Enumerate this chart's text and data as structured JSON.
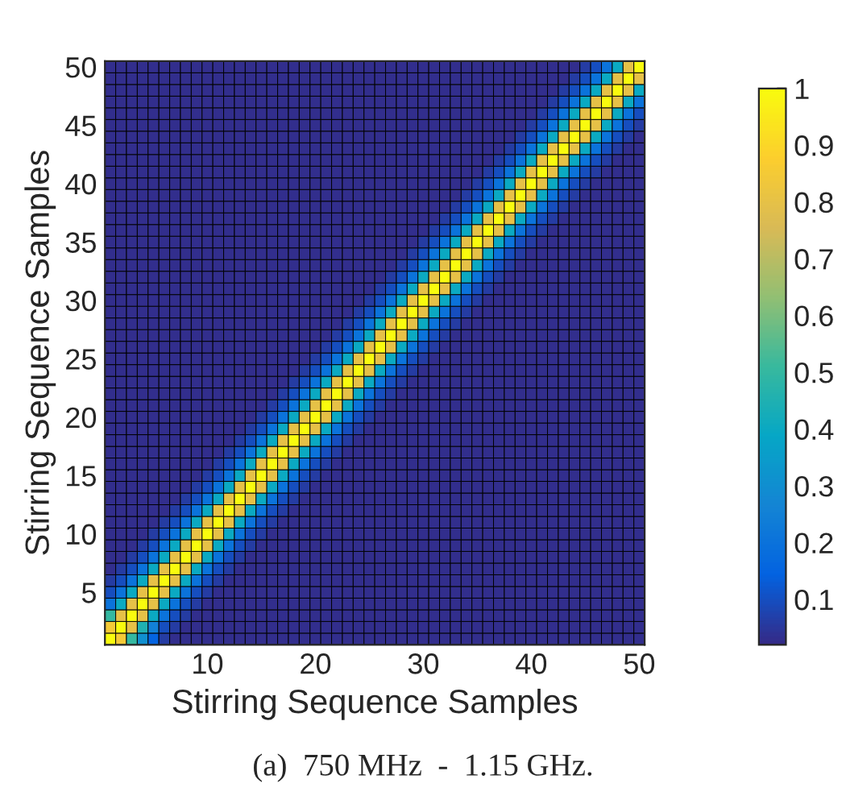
{
  "chart_data": {
    "type": "heatmap",
    "xlabel": "Stirring Sequence Samples",
    "ylabel": "Stirring Sequence Samples",
    "annotations": [
      "(a)  750 MHz  -  1.15 GHz."
    ],
    "categories": [
      null,
      null,
      null,
      null,
      null,
      null,
      null,
      null,
      null,
      "10",
      null,
      null,
      null,
      null,
      null,
      null,
      null,
      null,
      null,
      "20",
      null,
      null,
      null,
      null,
      null,
      null,
      null,
      null,
      null,
      "30",
      null,
      null,
      null,
      null,
      null,
      null,
      null,
      null,
      null,
      "40",
      null,
      null,
      null,
      null,
      null,
      null,
      null,
      null,
      null,
      "50"
    ],
    "y_categories": [
      "50",
      null,
      null,
      null,
      null,
      "45",
      null,
      null,
      null,
      null,
      "40",
      null,
      null,
      null,
      null,
      "35",
      null,
      null,
      null,
      null,
      "30",
      null,
      null,
      null,
      null,
      "25",
      null,
      null,
      null,
      null,
      "20",
      null,
      null,
      null,
      null,
      "15",
      null,
      null,
      null,
      null,
      "10",
      null,
      null,
      null,
      null,
      "5",
      null,
      null,
      null,
      null
    ],
    "clim": [
      0.02,
      1
    ],
    "cticks": [
      0.1,
      0.2,
      0.3,
      0.4,
      0.5,
      0.6,
      0.7,
      0.8,
      0.9,
      1
    ],
    "cells": [
      [
        0.03,
        0.03,
        0.03,
        0.03,
        0.03,
        0.03,
        0.03,
        0.03,
        0.03,
        0.03,
        0.03,
        0.03,
        0.03,
        0.03,
        0.03,
        0.03,
        0.03,
        0.03,
        0.03,
        0.03,
        0.03,
        0.03,
        0.03,
        0.03,
        0.03,
        0.03,
        0.03,
        0.03,
        0.03,
        0.03,
        0.03,
        0.03,
        0.03,
        0.03,
        0.03,
        0.03,
        0.03,
        0.03,
        0.03,
        0.03,
        0.03,
        0.03,
        0.03,
        0.03,
        0.06,
        0.1,
        0.2,
        0.4,
        0.8,
        1
      ],
      [
        0.03,
        0.03,
        0.03,
        0.03,
        0.03,
        0.03,
        0.03,
        0.03,
        0.03,
        0.03,
        0.03,
        0.03,
        0.03,
        0.03,
        0.03,
        0.03,
        0.03,
        0.03,
        0.03,
        0.03,
        0.03,
        0.03,
        0.03,
        0.03,
        0.03,
        0.03,
        0.03,
        0.03,
        0.03,
        0.03,
        0.03,
        0.03,
        0.03,
        0.03,
        0.03,
        0.03,
        0.03,
        0.03,
        0.03,
        0.03,
        0.03,
        0.03,
        0.03,
        0.06,
        0.1,
        0.2,
        0.4,
        0.8,
        1,
        0.8
      ],
      [
        0.03,
        0.03,
        0.03,
        0.03,
        0.03,
        0.03,
        0.03,
        0.03,
        0.03,
        0.03,
        0.03,
        0.03,
        0.03,
        0.03,
        0.03,
        0.03,
        0.03,
        0.03,
        0.03,
        0.03,
        0.03,
        0.03,
        0.03,
        0.03,
        0.03,
        0.03,
        0.03,
        0.03,
        0.03,
        0.03,
        0.03,
        0.03,
        0.03,
        0.03,
        0.03,
        0.03,
        0.03,
        0.03,
        0.03,
        0.03,
        0.03,
        0.03,
        0.06,
        0.1,
        0.2,
        0.4,
        0.8,
        1,
        0.8,
        0.4
      ],
      [
        0.03,
        0.03,
        0.03,
        0.03,
        0.03,
        0.03,
        0.03,
        0.03,
        0.03,
        0.03,
        0.03,
        0.03,
        0.03,
        0.03,
        0.03,
        0.03,
        0.03,
        0.03,
        0.03,
        0.03,
        0.03,
        0.03,
        0.03,
        0.03,
        0.03,
        0.03,
        0.03,
        0.03,
        0.03,
        0.03,
        0.03,
        0.03,
        0.03,
        0.03,
        0.03,
        0.03,
        0.03,
        0.03,
        0.03,
        0.03,
        0.03,
        0.06,
        0.1,
        0.2,
        0.4,
        0.8,
        1,
        0.8,
        0.4,
        0.2
      ],
      [
        0.03,
        0.03,
        0.03,
        0.03,
        0.03,
        0.03,
        0.03,
        0.03,
        0.03,
        0.03,
        0.03,
        0.03,
        0.03,
        0.03,
        0.03,
        0.03,
        0.03,
        0.03,
        0.03,
        0.03,
        0.03,
        0.03,
        0.03,
        0.03,
        0.03,
        0.03,
        0.03,
        0.03,
        0.03,
        0.03,
        0.03,
        0.03,
        0.03,
        0.03,
        0.03,
        0.03,
        0.03,
        0.03,
        0.03,
        0.03,
        0.06,
        0.1,
        0.2,
        0.4,
        0.8,
        1,
        0.8,
        0.4,
        0.2,
        0.1
      ],
      [
        0.03,
        0.03,
        0.03,
        0.03,
        0.03,
        0.03,
        0.03,
        0.03,
        0.03,
        0.03,
        0.03,
        0.03,
        0.03,
        0.03,
        0.03,
        0.03,
        0.03,
        0.03,
        0.03,
        0.03,
        0.03,
        0.03,
        0.03,
        0.03,
        0.03,
        0.03,
        0.03,
        0.03,
        0.03,
        0.03,
        0.03,
        0.03,
        0.03,
        0.03,
        0.03,
        0.03,
        0.03,
        0.03,
        0.03,
        0.06,
        0.1,
        0.2,
        0.4,
        0.8,
        1,
        0.8,
        0.4,
        0.2,
        0.1,
        0.06
      ],
      [
        0.03,
        0.03,
        0.03,
        0.03,
        0.03,
        0.03,
        0.03,
        0.03,
        0.03,
        0.03,
        0.03,
        0.03,
        0.03,
        0.03,
        0.03,
        0.03,
        0.03,
        0.03,
        0.03,
        0.03,
        0.03,
        0.03,
        0.03,
        0.03,
        0.03,
        0.03,
        0.03,
        0.03,
        0.03,
        0.03,
        0.03,
        0.03,
        0.03,
        0.03,
        0.03,
        0.03,
        0.03,
        0.03,
        0.06,
        0.1,
        0.2,
        0.4,
        0.8,
        1,
        0.8,
        0.4,
        0.2,
        0.1,
        0.06,
        0.03
      ],
      [
        0.03,
        0.03,
        0.03,
        0.03,
        0.03,
        0.03,
        0.03,
        0.03,
        0.03,
        0.03,
        0.03,
        0.03,
        0.03,
        0.03,
        0.03,
        0.03,
        0.03,
        0.03,
        0.03,
        0.03,
        0.03,
        0.03,
        0.03,
        0.03,
        0.03,
        0.03,
        0.03,
        0.03,
        0.03,
        0.03,
        0.03,
        0.03,
        0.03,
        0.03,
        0.03,
        0.03,
        0.03,
        0.06,
        0.1,
        0.2,
        0.4,
        0.8,
        1,
        0.8,
        0.4,
        0.2,
        0.1,
        0.06,
        0.03,
        0.03
      ],
      [
        0.03,
        0.03,
        0.03,
        0.03,
        0.03,
        0.03,
        0.03,
        0.03,
        0.03,
        0.03,
        0.03,
        0.03,
        0.03,
        0.03,
        0.03,
        0.03,
        0.03,
        0.03,
        0.03,
        0.03,
        0.03,
        0.03,
        0.03,
        0.03,
        0.03,
        0.03,
        0.03,
        0.03,
        0.03,
        0.03,
        0.03,
        0.03,
        0.03,
        0.03,
        0.03,
        0.03,
        0.06,
        0.1,
        0.2,
        0.4,
        0.8,
        1,
        0.8,
        0.4,
        0.2,
        0.1,
        0.06,
        0.03,
        0.03,
        0.03
      ],
      [
        0.03,
        0.03,
        0.03,
        0.03,
        0.03,
        0.03,
        0.03,
        0.03,
        0.03,
        0.03,
        0.03,
        0.03,
        0.03,
        0.03,
        0.03,
        0.03,
        0.03,
        0.03,
        0.03,
        0.03,
        0.03,
        0.03,
        0.03,
        0.03,
        0.03,
        0.03,
        0.03,
        0.03,
        0.03,
        0.03,
        0.03,
        0.03,
        0.03,
        0.03,
        0.03,
        0.06,
        0.1,
        0.2,
        0.4,
        0.8,
        1,
        0.8,
        0.4,
        0.2,
        0.1,
        0.06,
        0.03,
        0.03,
        0.03,
        0.03
      ],
      [
        0.03,
        0.03,
        0.03,
        0.03,
        0.03,
        0.03,
        0.03,
        0.03,
        0.03,
        0.03,
        0.03,
        0.03,
        0.03,
        0.03,
        0.03,
        0.03,
        0.03,
        0.03,
        0.03,
        0.03,
        0.03,
        0.03,
        0.03,
        0.03,
        0.03,
        0.03,
        0.03,
        0.03,
        0.03,
        0.03,
        0.03,
        0.03,
        0.03,
        0.03,
        0.06,
        0.1,
        0.2,
        0.4,
        0.8,
        1,
        0.8,
        0.4,
        0.2,
        0.1,
        0.06,
        0.03,
        0.03,
        0.03,
        0.03,
        0.03
      ],
      [
        0.03,
        0.03,
        0.03,
        0.03,
        0.03,
        0.03,
        0.03,
        0.03,
        0.03,
        0.03,
        0.03,
        0.03,
        0.03,
        0.03,
        0.03,
        0.03,
        0.03,
        0.03,
        0.03,
        0.03,
        0.03,
        0.03,
        0.03,
        0.03,
        0.03,
        0.03,
        0.03,
        0.03,
        0.03,
        0.03,
        0.03,
        0.03,
        0.03,
        0.06,
        0.1,
        0.2,
        0.4,
        0.8,
        1,
        0.8,
        0.4,
        0.2,
        0.1,
        0.06,
        0.03,
        0.03,
        0.03,
        0.03,
        0.03,
        0.03
      ],
      [
        0.03,
        0.03,
        0.03,
        0.03,
        0.03,
        0.03,
        0.03,
        0.03,
        0.03,
        0.03,
        0.03,
        0.03,
        0.03,
        0.03,
        0.03,
        0.03,
        0.03,
        0.03,
        0.03,
        0.03,
        0.03,
        0.03,
        0.03,
        0.03,
        0.03,
        0.03,
        0.03,
        0.03,
        0.03,
        0.03,
        0.03,
        0.03,
        0.06,
        0.1,
        0.2,
        0.4,
        0.8,
        1,
        0.8,
        0.4,
        0.2,
        0.1,
        0.06,
        0.03,
        0.03,
        0.03,
        0.03,
        0.03,
        0.03,
        0.03
      ],
      [
        0.03,
        0.03,
        0.03,
        0.03,
        0.03,
        0.03,
        0.03,
        0.03,
        0.03,
        0.03,
        0.03,
        0.03,
        0.03,
        0.03,
        0.03,
        0.03,
        0.03,
        0.03,
        0.03,
        0.03,
        0.03,
        0.03,
        0.03,
        0.03,
        0.03,
        0.03,
        0.03,
        0.03,
        0.03,
        0.03,
        0.03,
        0.06,
        0.1,
        0.2,
        0.4,
        0.8,
        1,
        0.8,
        0.4,
        0.2,
        0.1,
        0.06,
        0.03,
        0.03,
        0.03,
        0.03,
        0.03,
        0.03,
        0.03,
        0.03
      ],
      [
        0.03,
        0.03,
        0.03,
        0.03,
        0.03,
        0.03,
        0.03,
        0.03,
        0.03,
        0.03,
        0.03,
        0.03,
        0.03,
        0.03,
        0.03,
        0.03,
        0.03,
        0.03,
        0.03,
        0.03,
        0.03,
        0.03,
        0.03,
        0.03,
        0.03,
        0.03,
        0.03,
        0.03,
        0.03,
        0.03,
        0.06,
        0.1,
        0.2,
        0.4,
        0.8,
        1,
        0.8,
        0.4,
        0.2,
        0.1,
        0.06,
        0.03,
        0.03,
        0.03,
        0.03,
        0.03,
        0.03,
        0.03,
        0.03,
        0.03
      ],
      [
        0.03,
        0.03,
        0.03,
        0.03,
        0.03,
        0.03,
        0.03,
        0.03,
        0.03,
        0.03,
        0.03,
        0.03,
        0.03,
        0.03,
        0.03,
        0.03,
        0.03,
        0.03,
        0.03,
        0.03,
        0.03,
        0.03,
        0.03,
        0.03,
        0.03,
        0.03,
        0.03,
        0.03,
        0.03,
        0.06,
        0.1,
        0.2,
        0.4,
        0.8,
        1,
        0.8,
        0.4,
        0.2,
        0.1,
        0.06,
        0.03,
        0.03,
        0.03,
        0.03,
        0.03,
        0.03,
        0.03,
        0.03,
        0.03,
        0.03
      ],
      [
        0.03,
        0.03,
        0.03,
        0.03,
        0.03,
        0.03,
        0.03,
        0.03,
        0.03,
        0.03,
        0.03,
        0.03,
        0.03,
        0.03,
        0.03,
        0.03,
        0.03,
        0.03,
        0.03,
        0.03,
        0.03,
        0.03,
        0.03,
        0.03,
        0.03,
        0.03,
        0.03,
        0.03,
        0.06,
        0.1,
        0.2,
        0.4,
        0.8,
        1,
        0.8,
        0.4,
        0.2,
        0.1,
        0.06,
        0.03,
        0.03,
        0.03,
        0.03,
        0.03,
        0.03,
        0.03,
        0.03,
        0.03,
        0.03,
        0.03
      ],
      [
        0.03,
        0.03,
        0.03,
        0.03,
        0.03,
        0.03,
        0.03,
        0.03,
        0.03,
        0.03,
        0.03,
        0.03,
        0.03,
        0.03,
        0.03,
        0.03,
        0.03,
        0.03,
        0.03,
        0.03,
        0.03,
        0.03,
        0.03,
        0.03,
        0.03,
        0.03,
        0.03,
        0.06,
        0.1,
        0.2,
        0.4,
        0.8,
        1,
        0.8,
        0.4,
        0.2,
        0.1,
        0.06,
        0.03,
        0.03,
        0.03,
        0.03,
        0.03,
        0.03,
        0.03,
        0.03,
        0.03,
        0.03,
        0.03,
        0.03
      ],
      [
        0.03,
        0.03,
        0.03,
        0.03,
        0.03,
        0.03,
        0.03,
        0.03,
        0.03,
        0.03,
        0.03,
        0.03,
        0.03,
        0.03,
        0.03,
        0.03,
        0.03,
        0.03,
        0.03,
        0.03,
        0.03,
        0.03,
        0.03,
        0.03,
        0.03,
        0.03,
        0.06,
        0.1,
        0.2,
        0.4,
        0.8,
        1,
        0.8,
        0.4,
        0.2,
        0.1,
        0.06,
        0.03,
        0.03,
        0.03,
        0.03,
        0.03,
        0.03,
        0.03,
        0.03,
        0.03,
        0.03,
        0.03,
        0.03,
        0.03
      ],
      [
        0.03,
        0.03,
        0.03,
        0.03,
        0.03,
        0.03,
        0.03,
        0.03,
        0.03,
        0.03,
        0.03,
        0.03,
        0.03,
        0.03,
        0.03,
        0.03,
        0.03,
        0.03,
        0.03,
        0.03,
        0.03,
        0.03,
        0.03,
        0.03,
        0.03,
        0.06,
        0.1,
        0.2,
        0.4,
        0.8,
        1,
        0.8,
        0.4,
        0.2,
        0.1,
        0.06,
        0.03,
        0.03,
        0.03,
        0.03,
        0.03,
        0.03,
        0.03,
        0.03,
        0.03,
        0.03,
        0.03,
        0.03,
        0.03,
        0.03
      ],
      [
        0.03,
        0.03,
        0.03,
        0.03,
        0.03,
        0.03,
        0.03,
        0.03,
        0.03,
        0.03,
        0.03,
        0.03,
        0.03,
        0.03,
        0.03,
        0.03,
        0.03,
        0.03,
        0.03,
        0.03,
        0.03,
        0.03,
        0.03,
        0.03,
        0.06,
        0.1,
        0.2,
        0.4,
        0.8,
        1,
        0.8,
        0.4,
        0.2,
        0.1,
        0.06,
        0.03,
        0.03,
        0.03,
        0.03,
        0.03,
        0.03,
        0.03,
        0.03,
        0.03,
        0.03,
        0.03,
        0.03,
        0.03,
        0.03,
        0.03
      ],
      [
        0.03,
        0.03,
        0.03,
        0.03,
        0.03,
        0.03,
        0.03,
        0.03,
        0.03,
        0.03,
        0.03,
        0.03,
        0.03,
        0.03,
        0.03,
        0.03,
        0.03,
        0.03,
        0.03,
        0.03,
        0.03,
        0.03,
        0.03,
        0.06,
        0.1,
        0.2,
        0.4,
        0.8,
        1,
        0.8,
        0.4,
        0.2,
        0.1,
        0.06,
        0.03,
        0.03,
        0.03,
        0.03,
        0.03,
        0.03,
        0.03,
        0.03,
        0.03,
        0.03,
        0.03,
        0.03,
        0.03,
        0.03,
        0.03,
        0.03
      ],
      [
        0.03,
        0.03,
        0.03,
        0.03,
        0.03,
        0.03,
        0.03,
        0.03,
        0.03,
        0.03,
        0.03,
        0.03,
        0.03,
        0.03,
        0.03,
        0.03,
        0.03,
        0.03,
        0.03,
        0.03,
        0.03,
        0.03,
        0.06,
        0.1,
        0.2,
        0.4,
        0.8,
        1,
        0.8,
        0.4,
        0.2,
        0.1,
        0.06,
        0.03,
        0.03,
        0.03,
        0.03,
        0.03,
        0.03,
        0.03,
        0.03,
        0.03,
        0.03,
        0.03,
        0.03,
        0.03,
        0.03,
        0.03,
        0.03,
        0.03
      ],
      [
        0.03,
        0.03,
        0.03,
        0.03,
        0.03,
        0.03,
        0.03,
        0.03,
        0.03,
        0.03,
        0.03,
        0.03,
        0.03,
        0.03,
        0.03,
        0.03,
        0.03,
        0.03,
        0.03,
        0.03,
        0.03,
        0.06,
        0.1,
        0.2,
        0.4,
        0.8,
        1,
        0.8,
        0.4,
        0.2,
        0.1,
        0.06,
        0.03,
        0.03,
        0.03,
        0.03,
        0.03,
        0.03,
        0.03,
        0.03,
        0.03,
        0.03,
        0.03,
        0.03,
        0.03,
        0.03,
        0.03,
        0.03,
        0.03,
        0.03
      ],
      [
        0.03,
        0.03,
        0.03,
        0.03,
        0.03,
        0.03,
        0.03,
        0.03,
        0.03,
        0.03,
        0.03,
        0.03,
        0.03,
        0.03,
        0.03,
        0.03,
        0.03,
        0.03,
        0.03,
        0.03,
        0.06,
        0.1,
        0.2,
        0.4,
        0.8,
        1,
        0.8,
        0.4,
        0.2,
        0.1,
        0.06,
        0.03,
        0.03,
        0.03,
        0.03,
        0.03,
        0.03,
        0.03,
        0.03,
        0.03,
        0.03,
        0.03,
        0.03,
        0.03,
        0.03,
        0.03,
        0.03,
        0.03,
        0.03,
        0.03
      ],
      [
        0.03,
        0.03,
        0.03,
        0.03,
        0.03,
        0.03,
        0.03,
        0.03,
        0.03,
        0.03,
        0.03,
        0.03,
        0.03,
        0.03,
        0.03,
        0.03,
        0.03,
        0.03,
        0.03,
        0.06,
        0.1,
        0.2,
        0.4,
        0.8,
        1,
        0.8,
        0.4,
        0.2,
        0.1,
        0.06,
        0.03,
        0.03,
        0.03,
        0.03,
        0.03,
        0.03,
        0.03,
        0.03,
        0.03,
        0.03,
        0.03,
        0.03,
        0.03,
        0.03,
        0.03,
        0.03,
        0.03,
        0.03,
        0.03,
        0.03
      ],
      [
        0.03,
        0.03,
        0.03,
        0.03,
        0.03,
        0.03,
        0.03,
        0.03,
        0.03,
        0.03,
        0.03,
        0.03,
        0.03,
        0.03,
        0.03,
        0.03,
        0.03,
        0.03,
        0.06,
        0.1,
        0.2,
        0.4,
        0.8,
        1,
        0.8,
        0.4,
        0.2,
        0.1,
        0.06,
        0.03,
        0.03,
        0.03,
        0.03,
        0.03,
        0.03,
        0.03,
        0.03,
        0.03,
        0.03,
        0.03,
        0.03,
        0.03,
        0.03,
        0.03,
        0.03,
        0.03,
        0.03,
        0.03,
        0.03,
        0.03
      ],
      [
        0.03,
        0.03,
        0.03,
        0.03,
        0.03,
        0.03,
        0.03,
        0.03,
        0.03,
        0.03,
        0.03,
        0.03,
        0.03,
        0.03,
        0.03,
        0.03,
        0.03,
        0.06,
        0.1,
        0.2,
        0.4,
        0.8,
        1,
        0.8,
        0.4,
        0.2,
        0.1,
        0.06,
        0.03,
        0.03,
        0.03,
        0.03,
        0.03,
        0.03,
        0.03,
        0.03,
        0.03,
        0.03,
        0.03,
        0.03,
        0.03,
        0.03,
        0.03,
        0.03,
        0.03,
        0.03,
        0.03,
        0.03,
        0.03,
        0.03
      ],
      [
        0.03,
        0.03,
        0.03,
        0.03,
        0.03,
        0.03,
        0.03,
        0.03,
        0.03,
        0.03,
        0.03,
        0.03,
        0.03,
        0.03,
        0.03,
        0.03,
        0.06,
        0.1,
        0.2,
        0.4,
        0.8,
        1,
        0.8,
        0.4,
        0.2,
        0.1,
        0.06,
        0.03,
        0.03,
        0.03,
        0.03,
        0.03,
        0.03,
        0.03,
        0.03,
        0.03,
        0.03,
        0.03,
        0.03,
        0.03,
        0.03,
        0.03,
        0.03,
        0.03,
        0.03,
        0.03,
        0.03,
        0.03,
        0.03,
        0.03
      ],
      [
        0.03,
        0.03,
        0.03,
        0.03,
        0.03,
        0.03,
        0.03,
        0.03,
        0.03,
        0.03,
        0.03,
        0.03,
        0.03,
        0.03,
        0.03,
        0.06,
        0.1,
        0.2,
        0.4,
        0.8,
        1,
        0.8,
        0.4,
        0.2,
        0.1,
        0.06,
        0.03,
        0.03,
        0.03,
        0.03,
        0.03,
        0.03,
        0.03,
        0.03,
        0.03,
        0.03,
        0.03,
        0.03,
        0.03,
        0.03,
        0.03,
        0.03,
        0.03,
        0.03,
        0.03,
        0.03,
        0.03,
        0.03,
        0.03,
        0.03
      ],
      [
        0.03,
        0.03,
        0.03,
        0.03,
        0.03,
        0.03,
        0.03,
        0.03,
        0.03,
        0.03,
        0.03,
        0.03,
        0.03,
        0.03,
        0.06,
        0.1,
        0.2,
        0.4,
        0.8,
        1,
        0.8,
        0.4,
        0.2,
        0.1,
        0.06,
        0.03,
        0.03,
        0.03,
        0.03,
        0.03,
        0.03,
        0.03,
        0.03,
        0.03,
        0.03,
        0.03,
        0.03,
        0.03,
        0.03,
        0.03,
        0.03,
        0.03,
        0.03,
        0.03,
        0.03,
        0.03,
        0.03,
        0.03,
        0.03,
        0.03
      ],
      [
        0.03,
        0.03,
        0.03,
        0.03,
        0.03,
        0.03,
        0.03,
        0.03,
        0.03,
        0.03,
        0.03,
        0.03,
        0.03,
        0.06,
        0.1,
        0.2,
        0.4,
        0.8,
        1,
        0.8,
        0.4,
        0.2,
        0.1,
        0.06,
        0.03,
        0.03,
        0.03,
        0.03,
        0.03,
        0.03,
        0.03,
        0.03,
        0.03,
        0.03,
        0.03,
        0.03,
        0.03,
        0.03,
        0.03,
        0.03,
        0.03,
        0.03,
        0.03,
        0.03,
        0.03,
        0.03,
        0.03,
        0.03,
        0.03,
        0.03
      ],
      [
        0.03,
        0.03,
        0.03,
        0.03,
        0.03,
        0.03,
        0.03,
        0.03,
        0.03,
        0.03,
        0.03,
        0.03,
        0.06,
        0.1,
        0.2,
        0.4,
        0.8,
        1,
        0.8,
        0.4,
        0.2,
        0.1,
        0.06,
        0.03,
        0.03,
        0.03,
        0.03,
        0.03,
        0.03,
        0.03,
        0.03,
        0.03,
        0.03,
        0.03,
        0.03,
        0.03,
        0.03,
        0.03,
        0.03,
        0.03,
        0.03,
        0.03,
        0.03,
        0.03,
        0.03,
        0.03,
        0.03,
        0.03,
        0.03,
        0.03
      ],
      [
        0.03,
        0.03,
        0.03,
        0.03,
        0.03,
        0.03,
        0.03,
        0.03,
        0.03,
        0.03,
        0.03,
        0.06,
        0.1,
        0.2,
        0.4,
        0.8,
        1,
        0.8,
        0.4,
        0.2,
        0.1,
        0.06,
        0.03,
        0.03,
        0.03,
        0.03,
        0.03,
        0.03,
        0.03,
        0.03,
        0.03,
        0.03,
        0.03,
        0.03,
        0.03,
        0.03,
        0.03,
        0.03,
        0.03,
        0.03,
        0.03,
        0.03,
        0.03,
        0.03,
        0.03,
        0.03,
        0.03,
        0.03,
        0.03,
        0.03
      ],
      [
        0.03,
        0.03,
        0.03,
        0.03,
        0.03,
        0.03,
        0.03,
        0.03,
        0.03,
        0.03,
        0.06,
        0.1,
        0.2,
        0.4,
        0.8,
        1,
        0.8,
        0.4,
        0.2,
        0.1,
        0.06,
        0.03,
        0.03,
        0.03,
        0.03,
        0.03,
        0.03,
        0.03,
        0.03,
        0.03,
        0.03,
        0.03,
        0.03,
        0.03,
        0.03,
        0.03,
        0.03,
        0.03,
        0.03,
        0.03,
        0.03,
        0.03,
        0.03,
        0.03,
        0.03,
        0.03,
        0.03,
        0.03,
        0.03,
        0.03
      ],
      [
        0.03,
        0.03,
        0.03,
        0.03,
        0.03,
        0.03,
        0.03,
        0.03,
        0.03,
        0.06,
        0.1,
        0.2,
        0.4,
        0.8,
        1,
        0.8,
        0.4,
        0.2,
        0.1,
        0.06,
        0.03,
        0.03,
        0.03,
        0.03,
        0.03,
        0.03,
        0.03,
        0.03,
        0.03,
        0.03,
        0.03,
        0.03,
        0.03,
        0.03,
        0.03,
        0.03,
        0.03,
        0.03,
        0.03,
        0.03,
        0.03,
        0.03,
        0.03,
        0.03,
        0.03,
        0.03,
        0.03,
        0.03,
        0.03,
        0.03
      ],
      [
        0.03,
        0.03,
        0.03,
        0.03,
        0.03,
        0.03,
        0.03,
        0.03,
        0.06,
        0.1,
        0.2,
        0.4,
        0.8,
        1,
        0.8,
        0.4,
        0.2,
        0.1,
        0.06,
        0.03,
        0.03,
        0.03,
        0.03,
        0.03,
        0.03,
        0.03,
        0.03,
        0.03,
        0.03,
        0.03,
        0.03,
        0.03,
        0.03,
        0.03,
        0.03,
        0.03,
        0.03,
        0.03,
        0.03,
        0.03,
        0.03,
        0.03,
        0.03,
        0.03,
        0.03,
        0.03,
        0.03,
        0.03,
        0.03,
        0.03
      ],
      [
        0.03,
        0.03,
        0.03,
        0.03,
        0.03,
        0.03,
        0.03,
        0.06,
        0.1,
        0.2,
        0.4,
        0.8,
        1,
        0.8,
        0.4,
        0.2,
        0.1,
        0.06,
        0.03,
        0.03,
        0.03,
        0.03,
        0.03,
        0.03,
        0.03,
        0.03,
        0.03,
        0.03,
        0.03,
        0.03,
        0.03,
        0.03,
        0.03,
        0.03,
        0.03,
        0.03,
        0.03,
        0.03,
        0.03,
        0.03,
        0.03,
        0.03,
        0.03,
        0.03,
        0.03,
        0.03,
        0.03,
        0.03,
        0.03,
        0.03
      ],
      [
        0.03,
        0.03,
        0.03,
        0.03,
        0.03,
        0.03,
        0.06,
        0.1,
        0.2,
        0.4,
        0.8,
        1,
        0.8,
        0.4,
        0.2,
        0.1,
        0.06,
        0.03,
        0.03,
        0.03,
        0.03,
        0.03,
        0.03,
        0.03,
        0.03,
        0.03,
        0.03,
        0.03,
        0.03,
        0.03,
        0.03,
        0.03,
        0.03,
        0.03,
        0.03,
        0.03,
        0.03,
        0.03,
        0.03,
        0.03,
        0.03,
        0.03,
        0.03,
        0.03,
        0.03,
        0.03,
        0.03,
        0.03,
        0.03,
        0.03
      ],
      [
        0.03,
        0.03,
        0.03,
        0.03,
        0.03,
        0.06,
        0.1,
        0.2,
        0.4,
        0.8,
        1,
        0.8,
        0.4,
        0.2,
        0.1,
        0.06,
        0.03,
        0.03,
        0.03,
        0.03,
        0.03,
        0.03,
        0.03,
        0.03,
        0.03,
        0.03,
        0.03,
        0.03,
        0.03,
        0.03,
        0.03,
        0.03,
        0.03,
        0.03,
        0.03,
        0.03,
        0.03,
        0.03,
        0.03,
        0.03,
        0.03,
        0.03,
        0.03,
        0.03,
        0.03,
        0.03,
        0.03,
        0.03,
        0.03,
        0.03
      ],
      [
        0.03,
        0.03,
        0.03,
        0.03,
        0.06,
        0.1,
        0.2,
        0.4,
        0.8,
        1,
        0.8,
        0.4,
        0.2,
        0.1,
        0.06,
        0.03,
        0.03,
        0.03,
        0.03,
        0.03,
        0.03,
        0.03,
        0.03,
        0.03,
        0.03,
        0.03,
        0.03,
        0.03,
        0.03,
        0.03,
        0.03,
        0.03,
        0.03,
        0.03,
        0.03,
        0.03,
        0.03,
        0.03,
        0.03,
        0.03,
        0.03,
        0.03,
        0.03,
        0.03,
        0.03,
        0.03,
        0.03,
        0.03,
        0.03,
        0.03
      ],
      [
        0.03,
        0.03,
        0.03,
        0.06,
        0.1,
        0.2,
        0.4,
        0.8,
        1,
        0.8,
        0.4,
        0.2,
        0.1,
        0.06,
        0.03,
        0.03,
        0.03,
        0.03,
        0.03,
        0.03,
        0.03,
        0.03,
        0.03,
        0.03,
        0.03,
        0.03,
        0.03,
        0.03,
        0.03,
        0.03,
        0.03,
        0.03,
        0.03,
        0.03,
        0.03,
        0.03,
        0.03,
        0.03,
        0.03,
        0.03,
        0.03,
        0.03,
        0.03,
        0.03,
        0.03,
        0.03,
        0.03,
        0.03,
        0.03,
        0.03
      ],
      [
        0.03,
        0.03,
        0.06,
        0.1,
        0.2,
        0.4,
        0.8,
        1,
        0.8,
        0.4,
        0.2,
        0.1,
        0.06,
        0.03,
        0.03,
        0.03,
        0.03,
        0.03,
        0.03,
        0.03,
        0.03,
        0.03,
        0.03,
        0.03,
        0.03,
        0.03,
        0.03,
        0.03,
        0.03,
        0.03,
        0.03,
        0.03,
        0.03,
        0.03,
        0.03,
        0.03,
        0.03,
        0.03,
        0.03,
        0.03,
        0.03,
        0.03,
        0.03,
        0.03,
        0.03,
        0.03,
        0.03,
        0.03,
        0.03,
        0.03
      ],
      [
        0.03,
        0.06,
        0.1,
        0.2,
        0.4,
        0.8,
        1,
        0.8,
        0.4,
        0.2,
        0.1,
        0.06,
        0.03,
        0.03,
        0.03,
        0.03,
        0.03,
        0.03,
        0.03,
        0.03,
        0.03,
        0.03,
        0.03,
        0.03,
        0.03,
        0.03,
        0.03,
        0.03,
        0.03,
        0.03,
        0.03,
        0.03,
        0.03,
        0.03,
        0.03,
        0.03,
        0.03,
        0.03,
        0.03,
        0.03,
        0.03,
        0.03,
        0.03,
        0.03,
        0.03,
        0.03,
        0.03,
        0.03,
        0.03,
        0.03
      ],
      [
        0.06,
        0.1,
        0.2,
        0.4,
        0.8,
        1,
        0.8,
        0.4,
        0.2,
        0.1,
        0.06,
        0.03,
        0.03,
        0.03,
        0.03,
        0.03,
        0.03,
        0.03,
        0.03,
        0.03,
        0.03,
        0.03,
        0.03,
        0.03,
        0.03,
        0.03,
        0.03,
        0.03,
        0.03,
        0.03,
        0.03,
        0.03,
        0.03,
        0.03,
        0.03,
        0.03,
        0.03,
        0.03,
        0.03,
        0.03,
        0.03,
        0.03,
        0.03,
        0.03,
        0.03,
        0.03,
        0.03,
        0.03,
        0.03,
        0.03
      ],
      [
        0.1,
        0.2,
        0.4,
        0.8,
        1,
        0.8,
        0.4,
        0.2,
        0.1,
        0.06,
        0.03,
        0.03,
        0.03,
        0.03,
        0.03,
        0.03,
        0.03,
        0.03,
        0.03,
        0.03,
        0.03,
        0.03,
        0.03,
        0.03,
        0.03,
        0.03,
        0.03,
        0.03,
        0.03,
        0.03,
        0.03,
        0.03,
        0.03,
        0.03,
        0.03,
        0.03,
        0.03,
        0.03,
        0.03,
        0.03,
        0.03,
        0.03,
        0.03,
        0.03,
        0.03,
        0.03,
        0.03,
        0.03,
        0.03,
        0.03
      ],
      [
        0.2,
        0.4,
        0.8,
        1,
        0.8,
        0.4,
        0.2,
        0.1,
        0.06,
        0.03,
        0.03,
        0.03,
        0.03,
        0.03,
        0.03,
        0.03,
        0.03,
        0.03,
        0.03,
        0.03,
        0.03,
        0.03,
        0.03,
        0.03,
        0.03,
        0.03,
        0.03,
        0.03,
        0.03,
        0.03,
        0.03,
        0.03,
        0.03,
        0.03,
        0.03,
        0.03,
        0.03,
        0.03,
        0.03,
        0.03,
        0.03,
        0.03,
        0.03,
        0.03,
        0.03,
        0.03,
        0.03,
        0.03,
        0.03,
        0.03
      ],
      [
        0.5,
        0.8,
        1,
        0.8,
        0.4,
        0.2,
        0.1,
        0.06,
        0.03,
        0.03,
        0.03,
        0.03,
        0.03,
        0.03,
        0.03,
        0.03,
        0.03,
        0.03,
        0.03,
        0.03,
        0.03,
        0.03,
        0.03,
        0.03,
        0.03,
        0.03,
        0.03,
        0.03,
        0.03,
        0.03,
        0.03,
        0.03,
        0.03,
        0.03,
        0.03,
        0.03,
        0.03,
        0.03,
        0.03,
        0.03,
        0.03,
        0.03,
        0.03,
        0.03,
        0.03,
        0.03,
        0.03,
        0.03,
        0.03,
        0.03
      ],
      [
        0.85,
        1,
        0.8,
        0.45,
        0.25,
        0.1,
        0.06,
        0.03,
        0.03,
        0.03,
        0.03,
        0.03,
        0.03,
        0.03,
        0.03,
        0.03,
        0.03,
        0.03,
        0.03,
        0.03,
        0.03,
        0.03,
        0.03,
        0.03,
        0.03,
        0.03,
        0.03,
        0.03,
        0.03,
        0.03,
        0.03,
        0.03,
        0.03,
        0.03,
        0.03,
        0.03,
        0.03,
        0.03,
        0.03,
        0.03,
        0.03,
        0.03,
        0.03,
        0.03,
        0.03,
        0.03,
        0.03,
        0.03,
        0.03,
        0.03
      ],
      [
        1,
        0.85,
        0.5,
        0.3,
        0.15,
        0.06,
        0.03,
        0.03,
        0.03,
        0.03,
        0.03,
        0.03,
        0.03,
        0.03,
        0.03,
        0.03,
        0.03,
        0.03,
        0.03,
        0.03,
        0.03,
        0.03,
        0.03,
        0.03,
        0.03,
        0.03,
        0.03,
        0.03,
        0.03,
        0.03,
        0.03,
        0.03,
        0.03,
        0.03,
        0.03,
        0.03,
        0.03,
        0.03,
        0.03,
        0.03,
        0.03,
        0.03,
        0.03,
        0.03,
        0.03,
        0.03,
        0.03,
        0.03,
        0.03,
        0.03
      ]
    ]
  }
}
